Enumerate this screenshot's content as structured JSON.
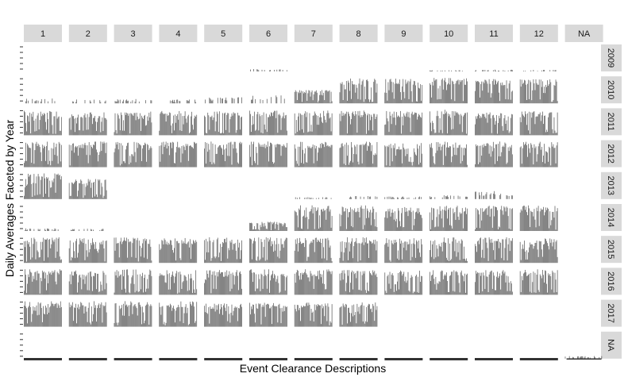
{
  "chart_data": {
    "type": "bar",
    "layout": "facet-grid",
    "xlabel": "Event Clearance Descriptions",
    "ylabel": "Daily Averages Faceted by Year",
    "col_facets": [
      "1",
      "2",
      "3",
      "4",
      "5",
      "6",
      "7",
      "8",
      "9",
      "10",
      "11",
      "12",
      "NA"
    ],
    "row_facets": [
      "2009",
      "2010",
      "2011",
      "2012",
      "2013",
      "2014",
      "2015",
      "2016",
      "2017",
      "NA"
    ],
    "value_range": [
      0,
      1
    ],
    "bar_color": "#595959",
    "strip_color": "#d9d9d9",
    "cells": [
      {
        "row": "2009",
        "levels": [
          0,
          0,
          0,
          0,
          0,
          0.08,
          0,
          0,
          0,
          0.04,
          0.06,
          0.05,
          0
        ]
      },
      {
        "row": "2010",
        "levels": [
          0.15,
          0.12,
          0.14,
          0.12,
          0.2,
          0.25,
          0.5,
          0.95,
          0.92,
          0.95,
          0.92,
          0.9,
          0
        ]
      },
      {
        "row": "2011",
        "levels": [
          0.92,
          0.85,
          0.88,
          0.9,
          0.9,
          0.92,
          0.92,
          0.92,
          0.9,
          0.95,
          0.85,
          0.9,
          0
        ]
      },
      {
        "row": "2012",
        "levels": [
          0.95,
          0.95,
          0.95,
          0.95,
          0.95,
          0.95,
          0.95,
          0.95,
          0.9,
          0.95,
          0.95,
          0.95,
          0
        ]
      },
      {
        "row": "2013",
        "levels": [
          0.95,
          0.75,
          0,
          0,
          0,
          0,
          0.06,
          0.1,
          0.08,
          0.12,
          0.25,
          0,
          0
        ]
      },
      {
        "row": "2014",
        "levels": [
          0.08,
          0.08,
          0,
          0,
          0,
          0.35,
          0.95,
          0.95,
          0.9,
          0.95,
          0.95,
          0.95,
          0
        ]
      },
      {
        "row": "2015",
        "levels": [
          0.95,
          0.92,
          0.95,
          0.92,
          0.95,
          0.95,
          0.95,
          0.95,
          0.92,
          0.95,
          0.95,
          0.92,
          0
        ]
      },
      {
        "row": "2016",
        "levels": [
          0.95,
          0.92,
          0.95,
          0.92,
          0.92,
          0.95,
          0.95,
          0.95,
          0.92,
          0.95,
          0.92,
          0.95,
          0
        ]
      },
      {
        "row": "2017",
        "levels": [
          0.95,
          0.95,
          0.95,
          0.95,
          0.9,
          0.9,
          0.9,
          0.9,
          0,
          0,
          0,
          0,
          0
        ]
      },
      {
        "row": "NA",
        "levels": [
          0,
          0,
          0,
          0,
          0,
          0,
          0,
          0,
          0,
          0,
          0,
          0,
          0.08
        ]
      }
    ]
  }
}
